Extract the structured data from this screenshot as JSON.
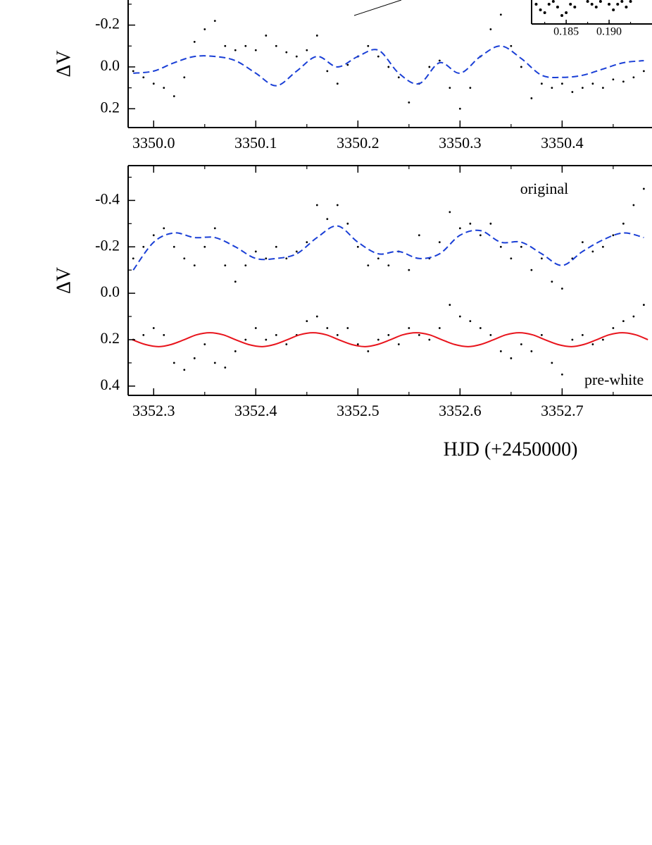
{
  "chart_data": [
    {
      "type": "scatter",
      "y_label": "ΔV",
      "y_reversed": true,
      "xlim": [
        3349.975,
        3350.488
      ],
      "ylim": [
        -0.32,
        0.29
      ],
      "xticks": [
        {
          "value": 3350.0,
          "label": "3350.0"
        },
        3350.1,
        3350.2,
        3350.3,
        3350.4
      ],
      "yticks": [
        -0.2,
        {
          "value": 0,
          "label": "0.0"
        },
        0.2
      ],
      "series": [
        {
          "style": "points",
          "color": "#000000",
          "x": [
            3349.98,
            3349.99,
            3350.0,
            3350.01,
            3350.02,
            3350.03,
            3350.04,
            3350.05,
            3350.06,
            3350.07,
            3350.08,
            3350.09,
            3350.1,
            3350.11,
            3350.12,
            3350.13,
            3350.14,
            3350.15,
            3350.16,
            3350.17,
            3350.18,
            3350.19,
            3350.2,
            3350.21,
            3350.22,
            3350.23,
            3350.24,
            3350.25,
            3350.26,
            3350.27,
            3350.28,
            3350.29,
            3350.3,
            3350.31,
            3350.32,
            3350.33,
            3350.34,
            3350.35,
            3350.36,
            3350.37,
            3350.38,
            3350.39,
            3350.4,
            3350.41,
            3350.42,
            3350.43,
            3350.44,
            3350.45,
            3350.46,
            3350.47,
            3350.48
          ],
          "values": [
            0.02,
            0.05,
            0.08,
            0.1,
            0.14,
            0.05,
            -0.12,
            -0.18,
            -0.22,
            -0.1,
            -0.08,
            -0.1,
            -0.08,
            -0.15,
            -0.1,
            -0.07,
            -0.05,
            -0.08,
            -0.15,
            0.02,
            0.08,
            -0.01,
            -0.05,
            -0.1,
            -0.05,
            0.0,
            0.05,
            0.17,
            0.08,
            0.0,
            -0.03,
            0.1,
            0.2,
            0.1,
            -0.05,
            -0.18,
            -0.25,
            -0.1,
            0.0,
            0.15,
            0.08,
            0.1,
            0.08,
            0.12,
            0.1,
            0.08,
            0.1,
            0.06,
            0.07,
            0.05,
            0.02
          ]
        },
        {
          "style": "dashed",
          "color": "#1a3fd6",
          "x": [
            3349.98,
            3350.0,
            3350.02,
            3350.04,
            3350.06,
            3350.08,
            3350.1,
            3350.12,
            3350.14,
            3350.16,
            3350.18,
            3350.2,
            3350.22,
            3350.24,
            3350.26,
            3350.28,
            3350.3,
            3350.32,
            3350.34,
            3350.36,
            3350.38,
            3350.4,
            3350.42,
            3350.44,
            3350.46,
            3350.48
          ],
          "values": [
            0.03,
            0.02,
            -0.02,
            -0.05,
            -0.05,
            -0.03,
            0.03,
            0.09,
            0.02,
            -0.05,
            0.0,
            -0.05,
            -0.08,
            0.03,
            0.08,
            -0.02,
            0.03,
            -0.05,
            -0.1,
            -0.04,
            0.04,
            0.05,
            0.04,
            0.01,
            -0.02,
            -0.03
          ]
        }
      ]
    },
    {
      "type": "scatter",
      "y_label": "ΔV",
      "x_label": "HJD (+2450000)",
      "y_reversed": true,
      "xlim": [
        3352.275,
        3352.788
      ],
      "ylim": [
        -0.55,
        0.44
      ],
      "xticks": [
        3352.3,
        3352.4,
        3352.5,
        3352.6,
        3352.7
      ],
      "yticks": [
        -0.4,
        -0.2,
        {
          "value": 0,
          "label": "0.0"
        },
        0.2,
        0.4
      ],
      "annotations": [
        "original",
        "pre-white"
      ],
      "series": [
        {
          "style": "points",
          "color": "#000000",
          "x": [
            3352.28,
            3352.29,
            3352.3,
            3352.31,
            3352.32,
            3352.33,
            3352.34,
            3352.35,
            3352.36,
            3352.37,
            3352.38,
            3352.39,
            3352.4,
            3352.41,
            3352.42,
            3352.43,
            3352.44,
            3352.45,
            3352.46,
            3352.47,
            3352.48,
            3352.49,
            3352.5,
            3352.51,
            3352.52,
            3352.53,
            3352.54,
            3352.55,
            3352.56,
            3352.57,
            3352.58,
            3352.59,
            3352.6,
            3352.61,
            3352.62,
            3352.63,
            3352.64,
            3352.65,
            3352.66,
            3352.67,
            3352.68,
            3352.69,
            3352.7,
            3352.71,
            3352.72,
            3352.73,
            3352.74,
            3352.75,
            3352.76,
            3352.77,
            3352.78
          ],
          "values": [
            -0.15,
            -0.2,
            -0.25,
            -0.28,
            -0.2,
            -0.15,
            -0.12,
            -0.2,
            -0.28,
            -0.12,
            -0.05,
            -0.12,
            -0.18,
            -0.15,
            -0.2,
            -0.15,
            -0.18,
            -0.22,
            -0.38,
            -0.32,
            -0.38,
            -0.3,
            -0.2,
            -0.12,
            -0.15,
            -0.12,
            -0.18,
            -0.1,
            -0.25,
            -0.15,
            -0.22,
            -0.35,
            -0.28,
            -0.3,
            -0.25,
            -0.3,
            -0.2,
            -0.15,
            -0.2,
            -0.1,
            -0.15,
            -0.05,
            -0.02,
            -0.15,
            -0.22,
            -0.18,
            -0.2,
            -0.25,
            -0.3,
            -0.38,
            -0.45
          ]
        },
        {
          "style": "dashed",
          "color": "#1a3fd6",
          "x": [
            3352.28,
            3352.3,
            3352.32,
            3352.34,
            3352.36,
            3352.38,
            3352.4,
            3352.42,
            3352.44,
            3352.46,
            3352.48,
            3352.5,
            3352.52,
            3352.54,
            3352.56,
            3352.58,
            3352.6,
            3352.62,
            3352.64,
            3352.66,
            3352.68,
            3352.7,
            3352.72,
            3352.74,
            3352.76,
            3352.78
          ],
          "values": [
            -0.1,
            -0.22,
            -0.26,
            -0.24,
            -0.24,
            -0.2,
            -0.15,
            -0.15,
            -0.17,
            -0.24,
            -0.29,
            -0.22,
            -0.17,
            -0.18,
            -0.15,
            -0.17,
            -0.25,
            -0.27,
            -0.22,
            -0.22,
            -0.17,
            -0.12,
            -0.18,
            -0.23,
            -0.26,
            -0.24
          ]
        },
        {
          "style": "points",
          "color": "#000000",
          "x": [
            3352.28,
            3352.29,
            3352.3,
            3352.31,
            3352.32,
            3352.33,
            3352.34,
            3352.35,
            3352.36,
            3352.37,
            3352.38,
            3352.39,
            3352.4,
            3352.41,
            3352.42,
            3352.43,
            3352.44,
            3352.45,
            3352.46,
            3352.47,
            3352.48,
            3352.49,
            3352.5,
            3352.51,
            3352.52,
            3352.53,
            3352.54,
            3352.55,
            3352.56,
            3352.57,
            3352.58,
            3352.59,
            3352.6,
            3352.61,
            3352.62,
            3352.63,
            3352.64,
            3352.65,
            3352.66,
            3352.67,
            3352.68,
            3352.69,
            3352.7,
            3352.71,
            3352.72,
            3352.73,
            3352.74,
            3352.75,
            3352.76,
            3352.77,
            3352.78
          ],
          "values": [
            0.2,
            0.18,
            0.15,
            0.18,
            0.3,
            0.33,
            0.28,
            0.22,
            0.3,
            0.32,
            0.25,
            0.2,
            0.15,
            0.2,
            0.18,
            0.22,
            0.18,
            0.12,
            0.1,
            0.15,
            0.18,
            0.15,
            0.22,
            0.25,
            0.2,
            0.18,
            0.22,
            0.15,
            0.18,
            0.2,
            0.15,
            0.05,
            0.1,
            0.12,
            0.15,
            0.18,
            0.25,
            0.28,
            0.22,
            0.25,
            0.18,
            0.3,
            0.35,
            0.2,
            0.18,
            0.22,
            0.2,
            0.15,
            0.12,
            0.1,
            0.05
          ]
        },
        {
          "style": "solid",
          "color": "#e8141c",
          "x": [
            3352.279,
            3352.292,
            3352.305,
            3352.317,
            3352.33,
            3352.342,
            3352.355,
            3352.368,
            3352.38,
            3352.393,
            3352.406,
            3352.418,
            3352.431,
            3352.443,
            3352.456,
            3352.469,
            3352.481,
            3352.494,
            3352.507,
            3352.519,
            3352.532,
            3352.544,
            3352.557,
            3352.57,
            3352.582,
            3352.595,
            3352.608,
            3352.62,
            3352.633,
            3352.645,
            3352.658,
            3352.671,
            3352.683,
            3352.696,
            3352.709,
            3352.721,
            3352.734,
            3352.746,
            3352.759,
            3352.772,
            3352.784
          ],
          "values": [
            0.2,
            0.221,
            0.23,
            0.221,
            0.2,
            0.179,
            0.17,
            0.179,
            0.2,
            0.221,
            0.23,
            0.221,
            0.2,
            0.179,
            0.17,
            0.179,
            0.2,
            0.221,
            0.23,
            0.221,
            0.2,
            0.179,
            0.17,
            0.179,
            0.2,
            0.221,
            0.23,
            0.221,
            0.2,
            0.179,
            0.17,
            0.179,
            0.2,
            0.221,
            0.23,
            0.221,
            0.2,
            0.179,
            0.17,
            0.179,
            0.2
          ]
        }
      ]
    },
    {
      "type": "scatter",
      "y_reversed": true,
      "xlim": [
        0.18097,
        0.195
      ],
      "ylim": [
        -0.45,
        -0.2
      ],
      "xticks": [
        0.185,
        {
          "value": 0.19,
          "label": "0.190"
        }
      ],
      "series": [
        {
          "style": "points",
          "color": "#000000",
          "x": [
            0.1815,
            0.182,
            0.1825,
            0.183,
            0.1835,
            0.184,
            0.1845,
            0.185,
            0.1855,
            0.186,
            0.1875,
            0.188,
            0.1885,
            0.189,
            0.1895,
            0.19,
            0.1905,
            0.191,
            0.1915,
            0.192,
            0.1925
          ],
          "values": [
            -0.27,
            -0.25,
            -0.24,
            -0.27,
            -0.28,
            -0.26,
            -0.23,
            -0.24,
            -0.27,
            -0.26,
            -0.28,
            -0.27,
            -0.26,
            -0.28,
            -0.29,
            -0.27,
            -0.25,
            -0.27,
            -0.28,
            -0.26,
            -0.28
          ]
        }
      ]
    }
  ]
}
